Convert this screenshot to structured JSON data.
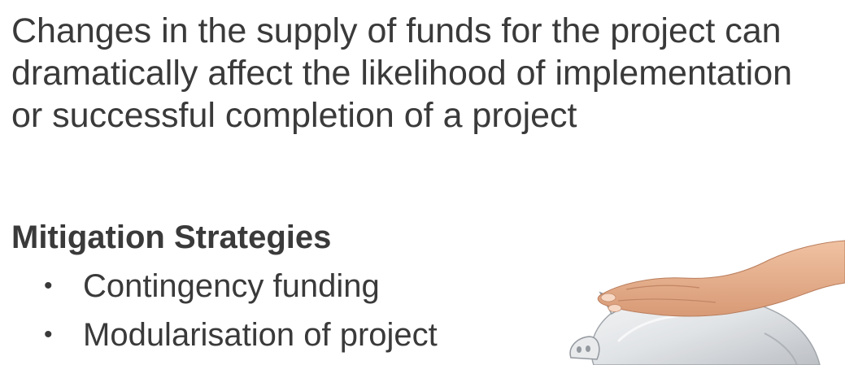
{
  "slide": {
    "intro_text": "Changes in the supply of funds for the project can dramatically affect the likelihood of implementation or successful completion of a project",
    "heading": "Mitigation Strategies",
    "bullets": [
      {
        "text": "Contingency funding"
      },
      {
        "text": "Modularisation of project"
      }
    ],
    "bullet_glyph": "•",
    "illustration": {
      "icon": "hand-on-glass-piggy-bank-icon",
      "skin_color": "#e8b18f",
      "glass_color": "#c9ccd0"
    }
  }
}
